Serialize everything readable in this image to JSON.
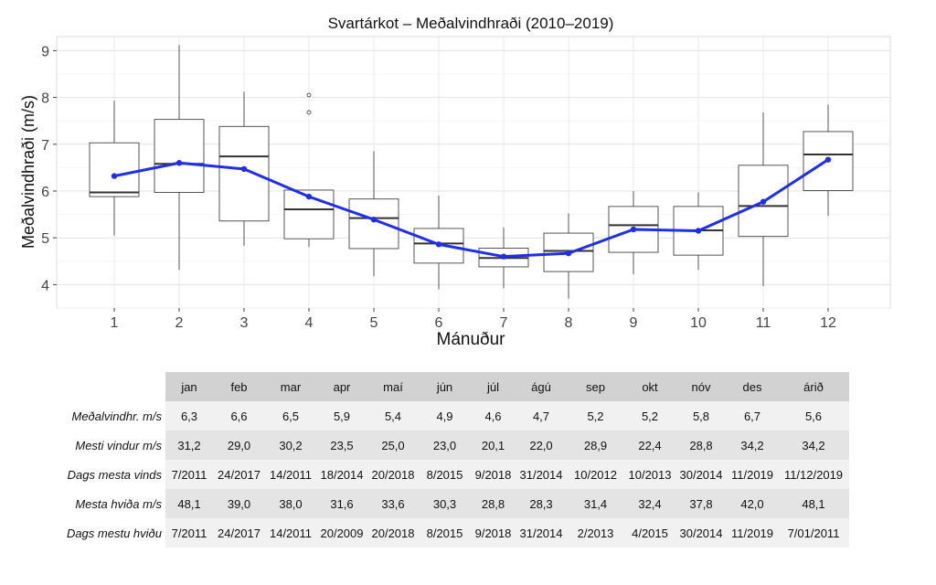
{
  "chart_data": {
    "type": "box",
    "title": "Svartárkot – Meðalvindhraði (2010–2019)",
    "xlabel": "Mánuður",
    "ylabel": "Meðalvindhraði (m/s)",
    "categories": [
      "1",
      "2",
      "3",
      "4",
      "5",
      "6",
      "7",
      "8",
      "9",
      "10",
      "11",
      "12"
    ],
    "ylim": [
      3.5,
      9.3
    ],
    "yticks": [
      4,
      5,
      6,
      7,
      8,
      9
    ],
    "grid": true,
    "boxes": [
      {
        "low": 5.05,
        "q1": 5.88,
        "median": 5.97,
        "q3": 7.03,
        "high": 7.93,
        "outliers": []
      },
      {
        "low": 4.32,
        "q1": 5.97,
        "median": 6.58,
        "q3": 7.53,
        "high": 9.12,
        "outliers": []
      },
      {
        "low": 4.83,
        "q1": 5.36,
        "median": 6.74,
        "q3": 7.38,
        "high": 8.12,
        "outliers": []
      },
      {
        "low": 4.8,
        "q1": 4.98,
        "median": 5.61,
        "q3": 6.02,
        "high": 6.02,
        "outliers": [
          8.05,
          7.68
        ]
      },
      {
        "low": 4.18,
        "q1": 4.77,
        "median": 5.42,
        "q3": 5.83,
        "high": 6.85,
        "outliers": []
      },
      {
        "low": 3.9,
        "q1": 4.46,
        "median": 4.88,
        "q3": 5.2,
        "high": 5.9,
        "outliers": []
      },
      {
        "low": 3.92,
        "q1": 4.38,
        "median": 4.57,
        "q3": 4.78,
        "high": 5.22,
        "outliers": []
      },
      {
        "low": 3.7,
        "q1": 4.28,
        "median": 4.72,
        "q3": 5.1,
        "high": 5.52,
        "outliers": []
      },
      {
        "low": 4.22,
        "q1": 4.69,
        "median": 5.27,
        "q3": 5.67,
        "high": 6.0,
        "outliers": []
      },
      {
        "low": 4.32,
        "q1": 4.63,
        "median": 5.16,
        "q3": 5.67,
        "high": 5.97,
        "outliers": []
      },
      {
        "low": 3.97,
        "q1": 5.03,
        "median": 5.68,
        "q3": 6.55,
        "high": 7.68,
        "outliers": []
      },
      {
        "low": 5.47,
        "q1": 6.01,
        "median": 6.78,
        "q3": 7.27,
        "high": 7.85,
        "outliers": []
      }
    ],
    "mean_line": {
      "color": "#1f2fe6",
      "values": [
        6.32,
        6.6,
        6.47,
        5.88,
        5.39,
        4.86,
        4.6,
        4.67,
        5.18,
        5.15,
        5.77,
        6.67
      ]
    }
  },
  "table": {
    "headers": [
      "jan",
      "feb",
      "mar",
      "apr",
      "maí",
      "jún",
      "júl",
      "ágú",
      "sep",
      "okt",
      "nóv",
      "des",
      "árið"
    ],
    "rows": [
      {
        "label": "Meðalvindhr. m/s",
        "cells": [
          "6,3",
          "6,6",
          "6,5",
          "5,9",
          "5,4",
          "4,9",
          "4,6",
          "4,7",
          "5,2",
          "5,2",
          "5,8",
          "6,7",
          "5,6"
        ]
      },
      {
        "label": "Mesti vindur m/s",
        "cells": [
          "31,2",
          "29,0",
          "30,2",
          "23,5",
          "25,0",
          "23,0",
          "20,1",
          "22,0",
          "28,9",
          "22,4",
          "28,8",
          "34,2",
          "34,2"
        ]
      },
      {
        "label": "Dags mesta vinds",
        "cells": [
          "7/2011",
          "24/2017",
          "14/2011",
          "18/2014",
          "20/2018",
          "8/2015",
          "9/2018",
          "31/2014",
          "10/2012",
          "10/2013",
          "30/2014",
          "11/2019",
          "11/12/2019"
        ]
      },
      {
        "label": "Mesta hviða m/s",
        "cells": [
          "48,1",
          "39,0",
          "38,0",
          "31,6",
          "33,6",
          "30,3",
          "28,8",
          "28,3",
          "31,4",
          "32,4",
          "37,8",
          "42,0",
          "48,1"
        ]
      },
      {
        "label": "Dags mestu hviðu",
        "cells": [
          "7/2011",
          "24/2017",
          "14/2011",
          "20/2009",
          "20/2018",
          "8/2015",
          "9/2018",
          "31/2014",
          "2/2013",
          "4/2015",
          "30/2014",
          "11/2019",
          "7/01/2011"
        ]
      }
    ]
  }
}
